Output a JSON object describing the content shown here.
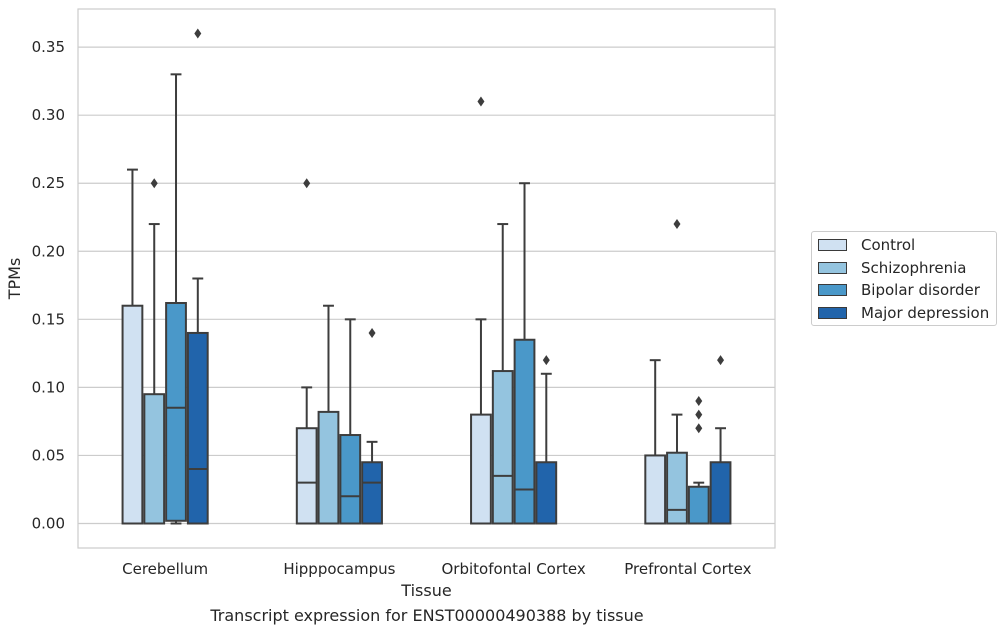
{
  "chart_data": {
    "type": "box",
    "title": "",
    "caption": "Transcript expression for ENST00000490388 by tissue",
    "xlabel": "Tissue",
    "ylabel": "TPMs",
    "ylim": [
      -0.018,
      0.378
    ],
    "yticks": [
      "0.00",
      "0.05",
      "0.10",
      "0.15",
      "0.20",
      "0.25",
      "0.30",
      "0.35"
    ],
    "grid": true,
    "legend_position": "right",
    "categories": [
      "Cerebellum",
      "Hipppocampus",
      "Orbitofontal Cortex",
      "Prefrontal Cortex"
    ],
    "series": [
      {
        "name": "Control",
        "color": "#d0e1f2",
        "boxes": [
          {
            "whisker_low": 0.0,
            "q1": 0.0,
            "median": 0.0,
            "q3": 0.16,
            "whisker_high": 0.26,
            "outliers": []
          },
          {
            "whisker_low": 0.0,
            "q1": 0.0,
            "median": 0.03,
            "q3": 0.07,
            "whisker_high": 0.1,
            "outliers": [
              0.25
            ]
          },
          {
            "whisker_low": 0.0,
            "q1": 0.0,
            "median": 0.0,
            "q3": 0.08,
            "whisker_high": 0.15,
            "outliers": [
              0.31
            ]
          },
          {
            "whisker_low": 0.0,
            "q1": 0.0,
            "median": 0.0,
            "q3": 0.05,
            "whisker_high": 0.12,
            "outliers": []
          }
        ]
      },
      {
        "name": "Schizophrenia",
        "color": "#94c4df",
        "boxes": [
          {
            "whisker_low": 0.0,
            "q1": 0.0,
            "median": 0.0,
            "q3": 0.095,
            "whisker_high": 0.22,
            "outliers": [
              0.25
            ]
          },
          {
            "whisker_low": 0.0,
            "q1": 0.0,
            "median": 0.0,
            "q3": 0.082,
            "whisker_high": 0.16,
            "outliers": []
          },
          {
            "whisker_low": 0.0,
            "q1": 0.0,
            "median": 0.035,
            "q3": 0.112,
            "whisker_high": 0.22,
            "outliers": []
          },
          {
            "whisker_low": 0.0,
            "q1": 0.0,
            "median": 0.01,
            "q3": 0.052,
            "whisker_high": 0.08,
            "outliers": [
              0.22
            ]
          }
        ]
      },
      {
        "name": "Bipolar disorder",
        "color": "#4a98c9",
        "boxes": [
          {
            "whisker_low": 0.0,
            "q1": 0.002,
            "median": 0.085,
            "q3": 0.162,
            "whisker_high": 0.33,
            "outliers": []
          },
          {
            "whisker_low": 0.0,
            "q1": 0.0,
            "median": 0.02,
            "q3": 0.065,
            "whisker_high": 0.15,
            "outliers": []
          },
          {
            "whisker_low": 0.0,
            "q1": 0.0,
            "median": 0.025,
            "q3": 0.135,
            "whisker_high": 0.25,
            "outliers": []
          },
          {
            "whisker_low": 0.0,
            "q1": 0.0,
            "median": 0.0,
            "q3": 0.027,
            "whisker_high": 0.03,
            "outliers": [
              0.07,
              0.08,
              0.09
            ]
          }
        ]
      },
      {
        "name": "Major depression",
        "color": "#2164ab",
        "boxes": [
          {
            "whisker_low": 0.0,
            "q1": 0.0,
            "median": 0.04,
            "q3": 0.14,
            "whisker_high": 0.18,
            "outliers": [
              0.36
            ]
          },
          {
            "whisker_low": 0.0,
            "q1": 0.0,
            "median": 0.03,
            "q3": 0.045,
            "whisker_high": 0.06,
            "outliers": [
              0.14
            ]
          },
          {
            "whisker_low": 0.0,
            "q1": 0.0,
            "median": 0.0,
            "q3": 0.045,
            "whisker_high": 0.11,
            "outliers": [
              0.12
            ]
          },
          {
            "whisker_low": 0.0,
            "q1": 0.0,
            "median": 0.0,
            "q3": 0.045,
            "whisker_high": 0.07,
            "outliers": [
              0.12
            ]
          }
        ]
      }
    ]
  }
}
